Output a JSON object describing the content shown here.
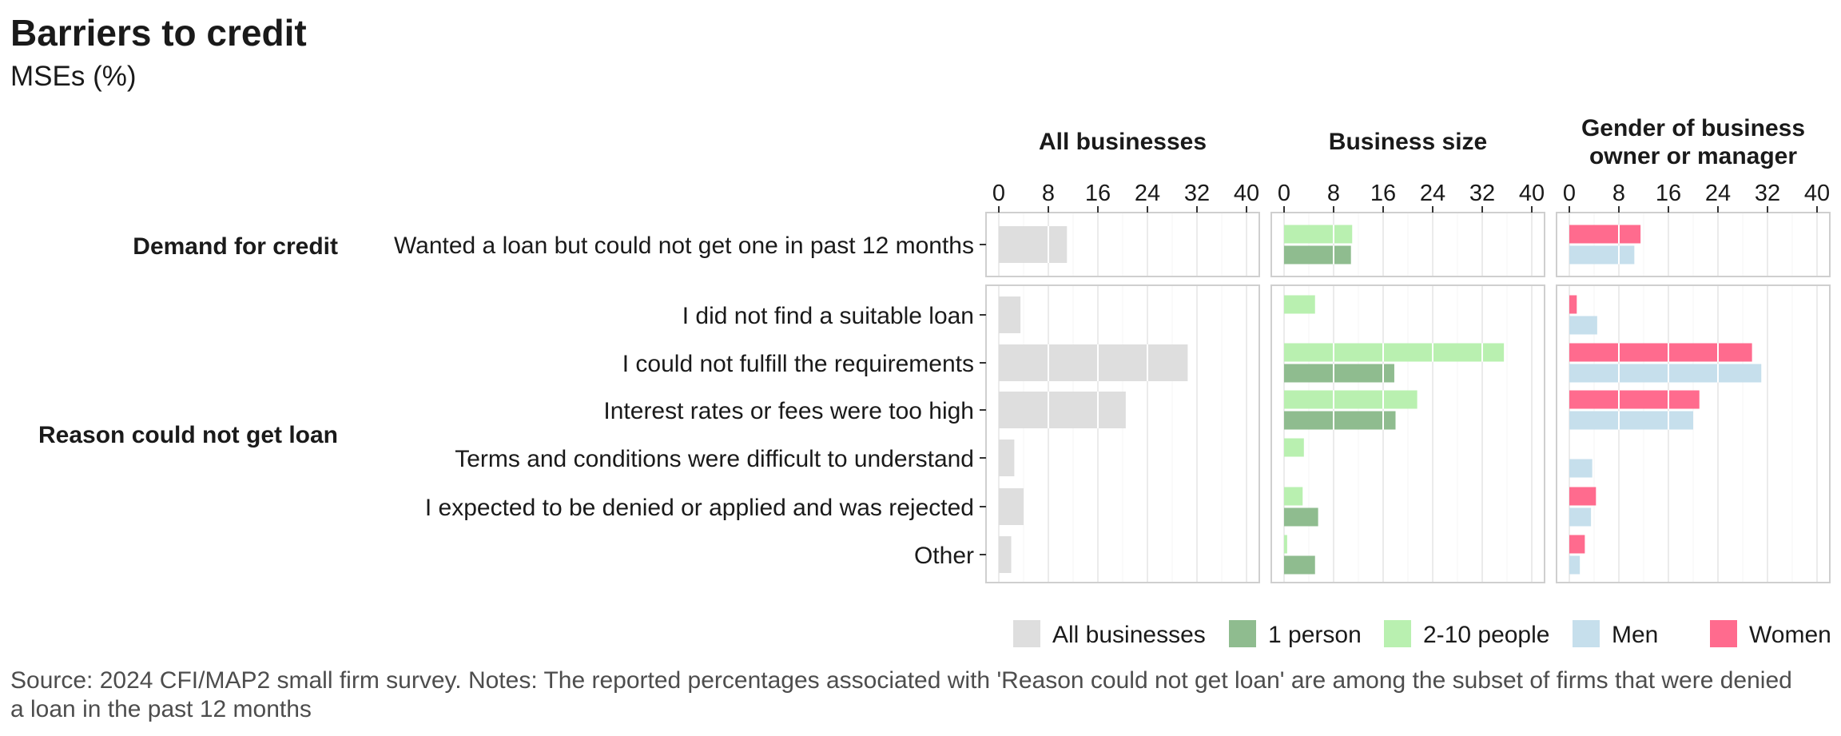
{
  "title": "Barriers to credit",
  "subtitle": "MSEs (%)",
  "source": "Source: 2024 CFI/MAP2 small firm survey. Notes: The reported percentages associated with 'Reason could not get loan' are among the subset of firms that were denied a loan in the past 12 months",
  "chart_data": {
    "type": "bar",
    "orientation": "horizontal",
    "xlim": [
      0,
      40
    ],
    "ticks": [
      0,
      8,
      16,
      24,
      32,
      40
    ],
    "grid": true,
    "legend_position": "bottom-right",
    "panels": [
      {
        "name": "All businesses"
      },
      {
        "name": "Business size"
      },
      {
        "name": "Gender of business owner or manager"
      }
    ],
    "groups": [
      {
        "name": "Demand for credit",
        "categories": [
          "Wanted a loan but could not get one in past 12 months"
        ]
      },
      {
        "name": "Reason could not get loan",
        "categories": [
          "I did not find a suitable loan",
          "I could not fulfill the requirements",
          "Interest rates or fees were too high",
          "Terms and conditions were difficult to understand",
          "I expected to be denied or applied and was rejected",
          "Other"
        ]
      }
    ],
    "legend": [
      {
        "name": "All businesses",
        "color": "#dedede"
      },
      {
        "name": "1 person",
        "color": "#8fbc8f"
      },
      {
        "name": "2-10 people",
        "color": "#b9f0b0"
      },
      {
        "name": "Men",
        "color": "#c6dfec"
      },
      {
        "name": "Women",
        "color": "#ff6b8e"
      }
    ],
    "series": [
      {
        "name": "All businesses",
        "panel": 0,
        "values": [
          11,
          3.5,
          30.5,
          20.5,
          2.5,
          4,
          2
        ]
      },
      {
        "name": "2-10 people",
        "panel": 1,
        "values": [
          11,
          5,
          35.5,
          21.5,
          3.2,
          3,
          0.5
        ]
      },
      {
        "name": "1 person",
        "panel": 1,
        "values": [
          10.8,
          null,
          17.8,
          18,
          null,
          5.5,
          5
        ]
      },
      {
        "name": "Women",
        "panel": 2,
        "values": [
          11.5,
          1.2,
          29.5,
          21,
          null,
          4.3,
          2.5
        ]
      },
      {
        "name": "Men",
        "panel": 2,
        "values": [
          10.5,
          4.5,
          31,
          20,
          3.7,
          3.5,
          1.7
        ]
      }
    ]
  }
}
